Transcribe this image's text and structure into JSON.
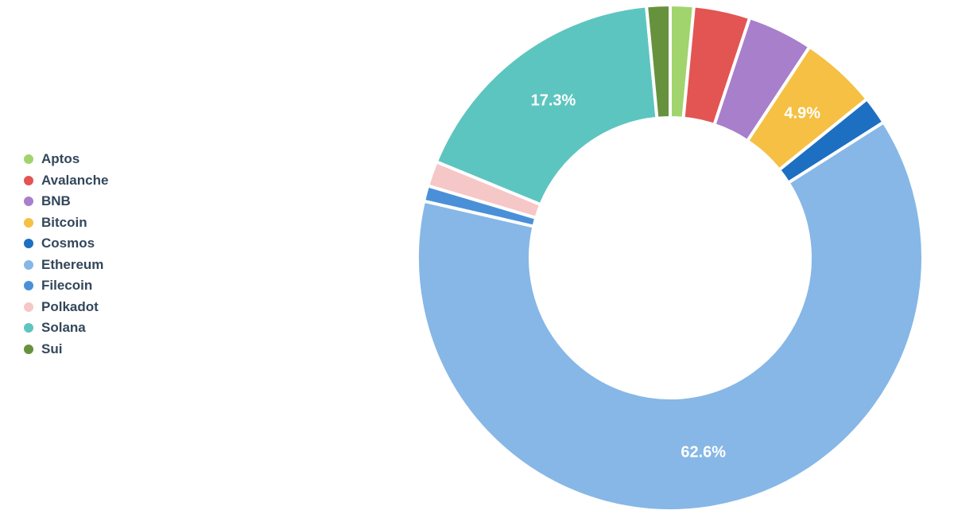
{
  "theme": {
    "background": "#ffffff",
    "legend_text_color": "#33475b",
    "slice_label_color": "#ffffff",
    "slice_separator_color": "#ffffff"
  },
  "chart_data": {
    "type": "pie",
    "title": "",
    "donut": true,
    "hole_ratio": 0.553,
    "start_angle_deg": 0,
    "direction": "clockwise",
    "legend_position": "left",
    "categories": [
      "Aptos",
      "Avalanche",
      "BNB",
      "Bitcoin",
      "Cosmos",
      "Ethereum",
      "Filecoin",
      "Polkadot",
      "Solana",
      "Sui"
    ],
    "values": [
      1.5,
      3.6,
      4.2,
      4.9,
      1.8,
      62.6,
      1.0,
      1.6,
      17.3,
      1.5
    ],
    "labels_shown": [
      "",
      "",
      "",
      "4.9%",
      "",
      "62.6%",
      "",
      "",
      "17.3%",
      ""
    ],
    "colors": [
      "#a2d46e",
      "#e25552",
      "#a87fcb",
      "#f5c043",
      "#1d6fc1",
      "#86b7e6",
      "#4a90d9",
      "#f6c7c7",
      "#5dc5c0",
      "#66923d"
    ]
  }
}
